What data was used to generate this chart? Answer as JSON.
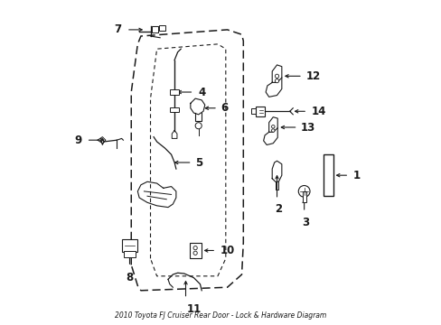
{
  "title": "2010 Toyota FJ Cruiser Rear Door - Lock & Hardware Diagram",
  "bg_color": "#ffffff",
  "line_color": "#1a1a1a",
  "fig_width": 4.89,
  "fig_height": 3.6,
  "dpi": 100,
  "label_fontsize": 8.5,
  "arrow_color": "#1a1a1a",
  "door_outer": {
    "x": [
      0.22,
      0.22,
      0.24,
      0.25,
      0.52,
      0.565,
      0.57,
      0.57,
      0.565,
      0.52,
      0.25,
      0.24,
      0.22
    ],
    "y": [
      0.18,
      0.72,
      0.87,
      0.895,
      0.915,
      0.9,
      0.88,
      0.25,
      0.15,
      0.11,
      0.1,
      0.115,
      0.18
    ]
  },
  "door_inner": {
    "x": [
      0.28,
      0.28,
      0.3,
      0.49,
      0.515,
      0.515,
      0.49,
      0.3,
      0.28
    ],
    "y": [
      0.2,
      0.7,
      0.855,
      0.87,
      0.855,
      0.2,
      0.145,
      0.145,
      0.2
    ]
  }
}
